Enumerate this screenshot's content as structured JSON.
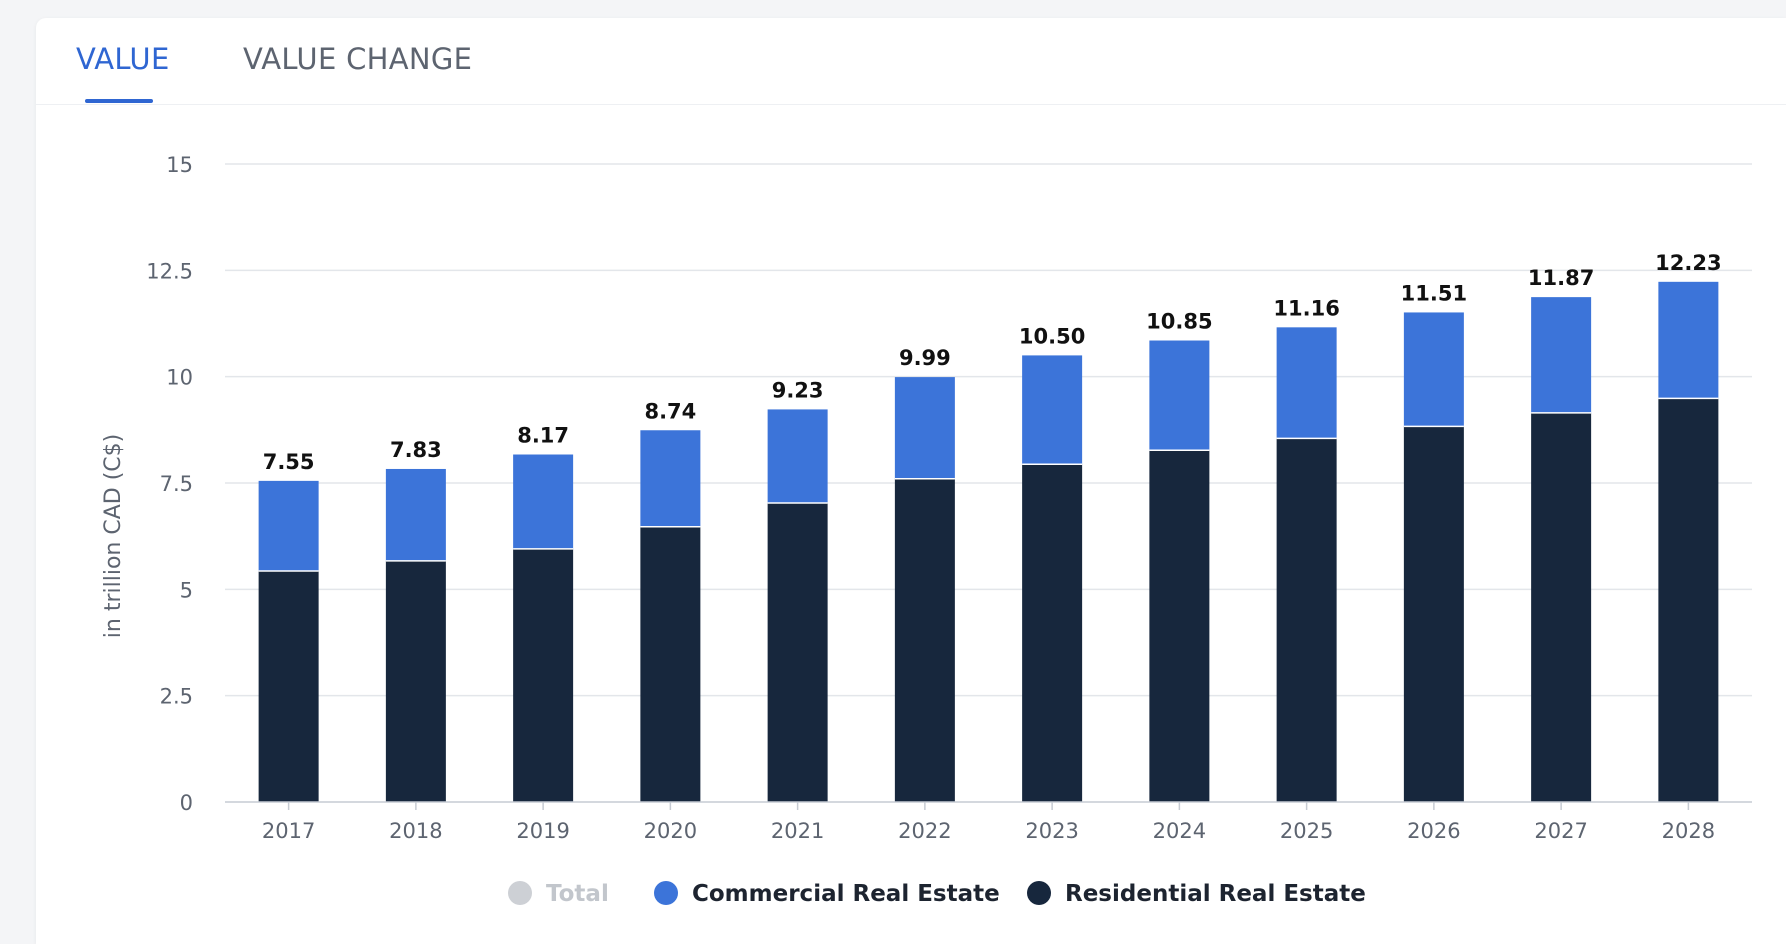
{
  "tabs": [
    {
      "label": "VALUE"
    },
    {
      "label": "VALUE CHANGE"
    }
  ],
  "colors": {
    "commercial": "#3c74d9",
    "residential": "#17273d",
    "total_disabled": "#cdd0d5",
    "active_tab": "#2f66d2"
  },
  "chart_data": {
    "type": "bar",
    "stacked": true,
    "title": "",
    "xlabel": "",
    "ylabel": "in trillion CAD (C$)",
    "ylim": [
      0,
      15
    ],
    "yticks": [
      "0",
      "2.5",
      "5",
      "7.5",
      "10",
      "12.5",
      "15"
    ],
    "grid": true,
    "categories": [
      "2017",
      "2018",
      "2019",
      "2020",
      "2021",
      "2022",
      "2023",
      "2024",
      "2025",
      "2026",
      "2027",
      "2028"
    ],
    "series": [
      {
        "name": "Residential Real Estate",
        "values": [
          5.43,
          5.67,
          5.95,
          6.47,
          7.03,
          7.6,
          7.94,
          8.27,
          8.55,
          8.83,
          9.15,
          9.49
        ]
      },
      {
        "name": "Commercial Real Estate",
        "values": [
          2.12,
          2.16,
          2.22,
          2.27,
          2.2,
          2.39,
          2.56,
          2.58,
          2.61,
          2.68,
          2.72,
          2.74
        ]
      }
    ],
    "totals": [
      "7.55",
      "7.83",
      "8.17",
      "8.74",
      "9.23",
      "9.99",
      "10.50",
      "10.85",
      "11.16",
      "11.51",
      "11.87",
      "12.23"
    ],
    "legend": [
      {
        "label": "Total",
        "enabled": false
      },
      {
        "label": "Commercial Real Estate",
        "enabled": true
      },
      {
        "label": "Residential Real Estate",
        "enabled": true
      }
    ],
    "legend_position": "bottom"
  }
}
